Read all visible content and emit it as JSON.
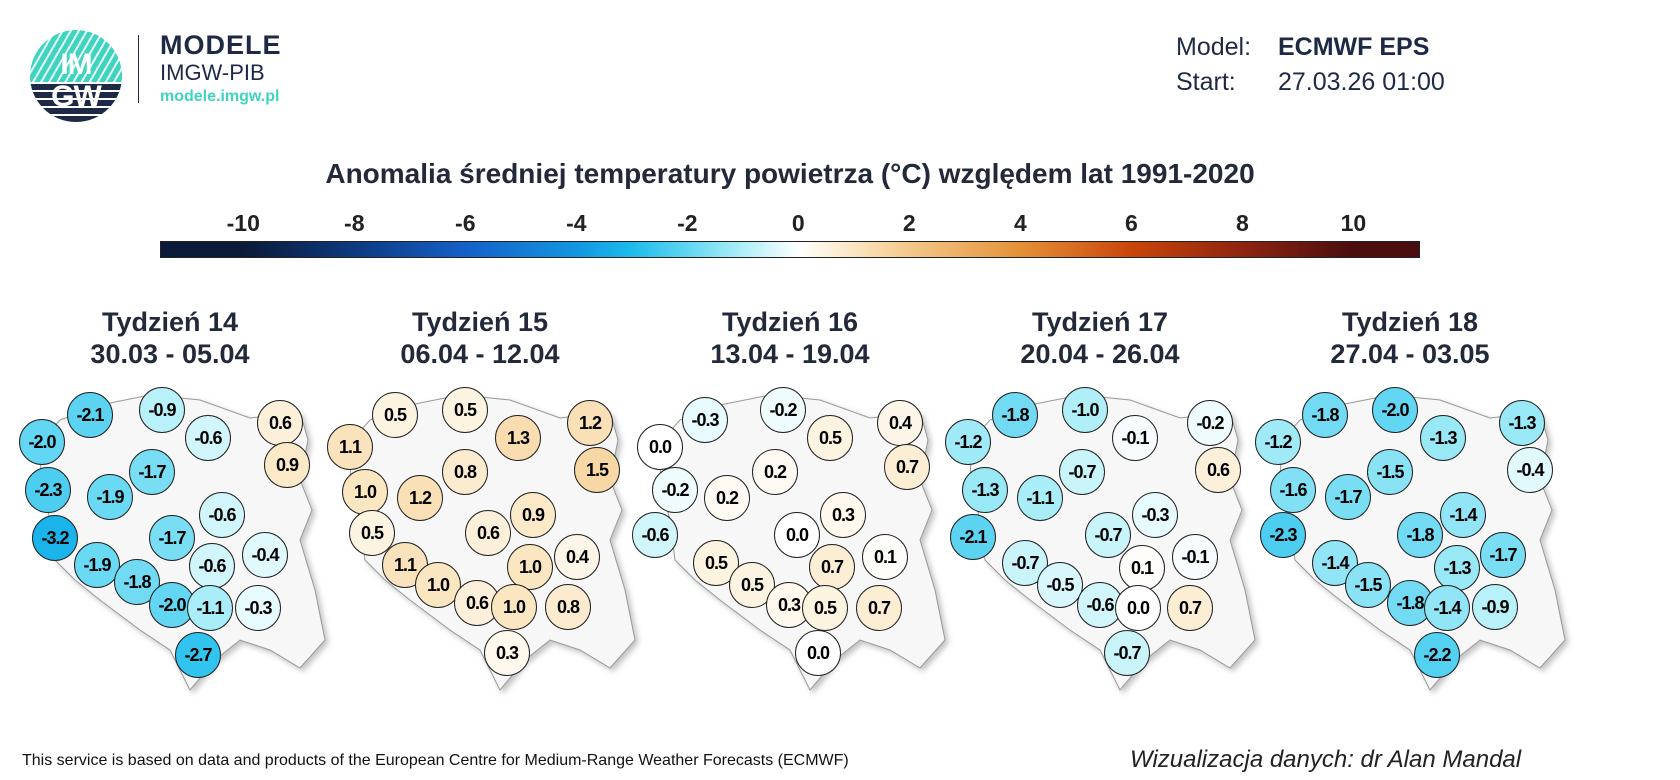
{
  "logo": {
    "mark_text_top": "IM",
    "mark_text_bottom": "GW",
    "brand": "MODELE",
    "subbrand": "IMGW-PIB",
    "url": "modele.imgw.pl",
    "colors": {
      "teal": "#3fd4c0",
      "navy": "#1e2a45"
    }
  },
  "meta": {
    "model_label": "Model:",
    "model_value": "ECMWF EPS",
    "start_label": "Start:",
    "start_value": "27.03.26 01:00"
  },
  "title": "Anomalia średniej temperatury powietrza (°C) względem lat 1991-2020",
  "colorbar": {
    "ticks": [
      "-10",
      "-8",
      "-6",
      "-4",
      "-2",
      "0",
      "2",
      "4",
      "6",
      "8",
      "10"
    ],
    "range": [
      -11.5,
      11.2
    ]
  },
  "weeks": [
    {
      "name": "Tydzień 14",
      "dates": "30.03 - 05.04",
      "values": [
        "-2.1",
        "-0.9",
        "-2.0",
        "-0.6",
        "0.6",
        "-1.7",
        "0.9",
        "-2.3",
        "-1.9",
        "-0.6",
        "-3.2",
        "-1.7",
        "-0.6",
        "-0.4",
        "-1.9",
        "-1.8",
        "-2.0",
        "-1.1",
        "-0.3",
        "-2.7"
      ]
    },
    {
      "name": "Tydzień 15",
      "dates": "06.04 - 12.04",
      "values": [
        "0.5",
        "0.5",
        "1.1",
        "1.3",
        "1.2",
        "0.8",
        "1.5",
        "1.0",
        "1.2",
        "0.9",
        "0.5",
        "0.6",
        "0.4",
        "1.0",
        "1.1",
        "1.0",
        "0.6",
        "1.0",
        "0.8",
        "0.3"
      ]
    },
    {
      "name": "Tydzień 16",
      "dates": "13.04 - 19.04",
      "values": [
        "-0.3",
        "-0.2",
        "0.0",
        "0.5",
        "0.4",
        "0.2",
        "0.7",
        "-0.2",
        "0.2",
        "0.3",
        "-0.6",
        "0.0",
        "0.1",
        "0.7",
        "0.5",
        "0.5",
        "0.3",
        "0.5",
        "0.7",
        "0.0"
      ]
    },
    {
      "name": "Tydzień 17",
      "dates": "20.04 - 26.04",
      "values": [
        "-1.8",
        "-1.0",
        "-1.2",
        "-0.1",
        "-0.2",
        "-0.7",
        "0.6",
        "-1.3",
        "-1.1",
        "-0.3",
        "-2.1",
        "-0.7",
        "-0.1",
        "0.1",
        "-0.7",
        "-0.5",
        "-0.6",
        "0.0",
        "0.7",
        "-0.7"
      ]
    },
    {
      "name": "Tydzień 18",
      "dates": "27.04 - 03.05",
      "values": [
        "-1.8",
        "-2.0",
        "-1.2",
        "-1.3",
        "-1.3",
        "-1.5",
        "-0.4",
        "-1.6",
        "-1.7",
        "-1.4",
        "-2.3",
        "-1.8",
        "-1.7",
        "-1.3",
        "-1.4",
        "-1.5",
        "-1.8",
        "-1.4",
        "-0.9",
        "-2.2"
      ]
    }
  ],
  "footer": {
    "credit": "This service is based on data and products of the European Centre for Medium-Range Weather Forecasts (ECMWF)",
    "author": "Wizualizacja danych: dr Alan Mandal"
  }
}
